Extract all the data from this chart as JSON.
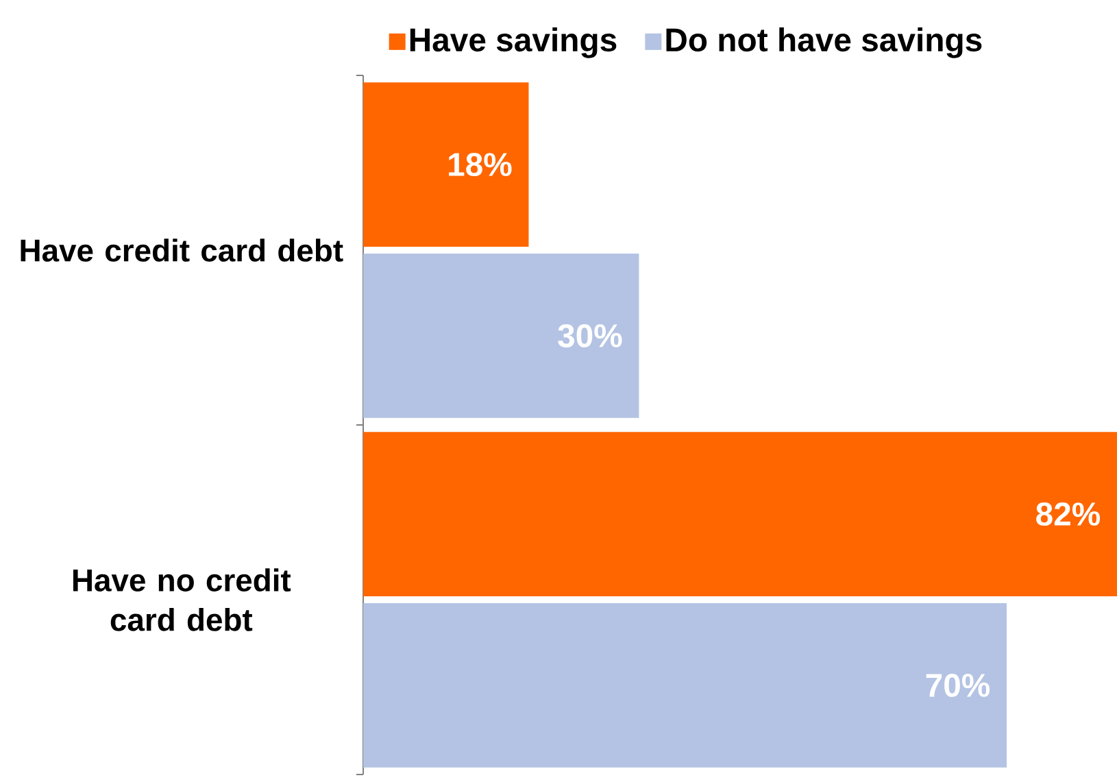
{
  "chart_data": {
    "type": "bar",
    "orientation": "horizontal",
    "legend": "top",
    "categories": [
      "Have credit card debt",
      "Have no credit card debt"
    ],
    "series": [
      {
        "name": "Have savings",
        "color": "#ff6600",
        "values": [
          18,
          82
        ],
        "value_labels": [
          "18%",
          "82%"
        ]
      },
      {
        "name": "Do not have savings",
        "color": "#b4c3e3",
        "values": [
          30,
          70
        ],
        "value_labels": [
          "30%",
          "70%"
        ]
      }
    ]
  }
}
